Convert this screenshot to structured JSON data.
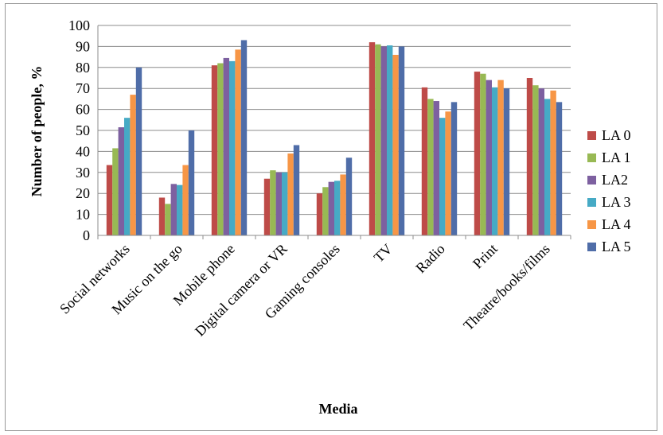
{
  "chart_data": {
    "type": "bar",
    "title": "",
    "xlabel": "Media",
    "ylabel": "Number of people, %",
    "ylim": [
      0,
      100
    ],
    "yticks": [
      0,
      10,
      20,
      30,
      40,
      50,
      60,
      70,
      80,
      90,
      100
    ],
    "grid": true,
    "legend_position": "right",
    "categories": [
      "Social networks",
      "Music on the go",
      "Mobile phone",
      "Digital camera or VR",
      "Gaming consoles",
      "TV",
      "Radio",
      "Print",
      "Theatre/books/films"
    ],
    "series": [
      {
        "name": "LA 0",
        "color": "#BE4B48",
        "values": [
          33.5,
          18,
          81,
          27,
          20,
          92,
          70.5,
          78,
          75
        ]
      },
      {
        "name": "LA 1",
        "color": "#98B954",
        "values": [
          41.5,
          15,
          82,
          31,
          23,
          91,
          65,
          77,
          71.5
        ]
      },
      {
        "name": "LA2",
        "color": "#7D60A0",
        "values": [
          51.5,
          24.5,
          84.5,
          30,
          25.5,
          90,
          64,
          74,
          70
        ]
      },
      {
        "name": "LA 3",
        "color": "#46AAC5",
        "values": [
          56,
          24,
          83,
          30,
          26,
          90.5,
          56,
          70.5,
          65
        ]
      },
      {
        "name": "LA 4",
        "color": "#F79646",
        "values": [
          67,
          33.5,
          88.5,
          39,
          29,
          86,
          59,
          74,
          69
        ]
      },
      {
        "name": "LA 5",
        "color": "#4F6DA8",
        "values": [
          80,
          50,
          93,
          43,
          37,
          90,
          63.5,
          70,
          63.5
        ]
      }
    ]
  }
}
